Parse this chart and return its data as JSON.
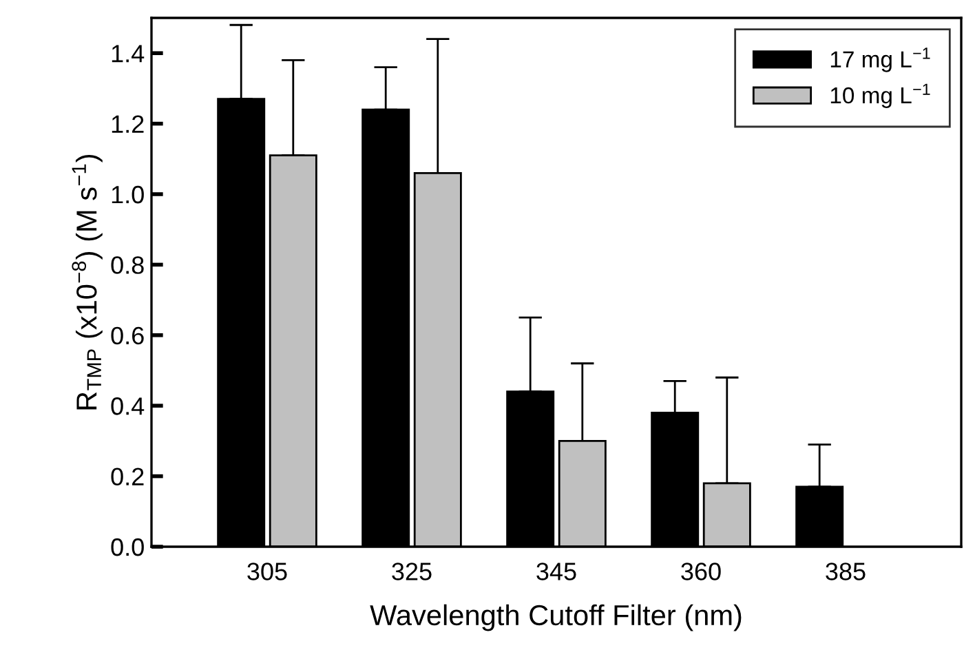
{
  "chart_data": {
    "type": "bar",
    "xlabel": "Wavelength Cutoff Filter (nm)",
    "ylabel": "R$_{TMP}$ (x10$^{−8}$) (M s$^{−1}$)",
    "categories": [
      "305",
      "325",
      "345",
      "360",
      "385"
    ],
    "series": [
      {
        "name": "17 mg L$^{−1}$",
        "color": "#000000",
        "values": [
          1.27,
          1.24,
          0.44,
          0.38,
          0.17
        ],
        "errors": [
          [
            1.27,
            1.48
          ],
          [
            1.24,
            1.36
          ],
          [
            0.44,
            0.65
          ],
          [
            0.38,
            0.47
          ],
          [
            0.17,
            0.29
          ]
        ]
      },
      {
        "name": "10 mg L$^{−1}$",
        "color": "#c0c0c0",
        "values": [
          1.11,
          1.06,
          0.3,
          0.18,
          null
        ],
        "errors": [
          [
            1.11,
            1.38
          ],
          [
            1.06,
            1.44
          ],
          [
            0.3,
            0.52
          ],
          [
            0.18,
            0.48
          ],
          null
        ]
      }
    ],
    "ylim": [
      0,
      1.5
    ],
    "yticks": [
      {
        "value": 0,
        "label": "0.0"
      },
      0.2,
      0.4,
      0.6,
      0.8,
      {
        "value": 1,
        "label": "1.0"
      },
      1.2,
      1.4
    ],
    "grid": false,
    "legend": "top right"
  }
}
